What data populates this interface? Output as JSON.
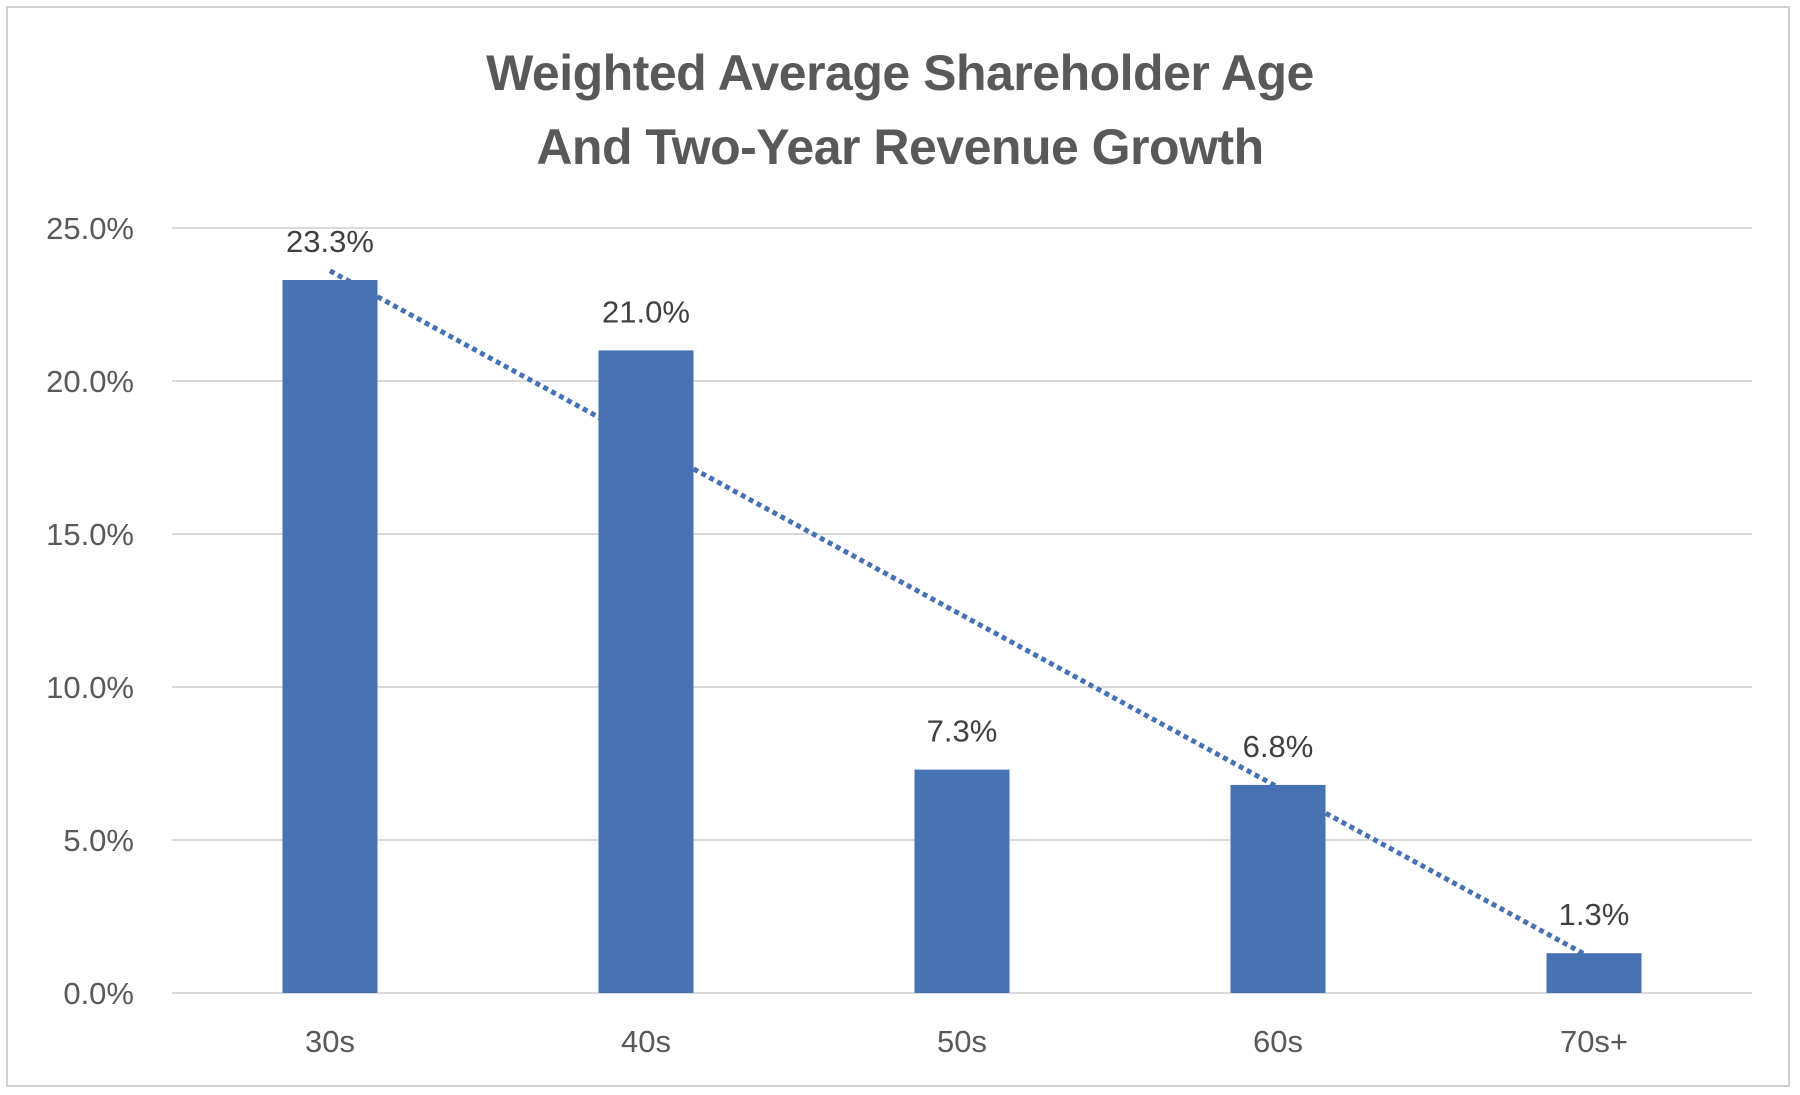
{
  "chart_data": {
    "type": "bar",
    "title_lines": [
      "Weighted Average Shareholder Age",
      "And Two-Year Revenue Growth"
    ],
    "categories": [
      "30s",
      "40s",
      "50s",
      "60s",
      "70s+"
    ],
    "values": [
      23.3,
      21.0,
      7.3,
      6.8,
      1.3
    ],
    "data_labels": [
      "23.3%",
      "21.0%",
      "7.3%",
      "6.8%",
      "1.3%"
    ],
    "ylim": [
      0,
      25
    ],
    "yticks": [
      0,
      5,
      10,
      15,
      20,
      25
    ],
    "ytick_labels": [
      "0.0%",
      "5.0%",
      "10.0%",
      "15.0%",
      "20.0%",
      "25.0%"
    ],
    "xlabel": "",
    "ylabel": "",
    "grid": true,
    "legend": "none",
    "bar_color": "#4672B4",
    "trendline": {
      "type": "linear",
      "style": "dotted",
      "color": "#4672B4",
      "start_value": 23.6,
      "end_value": 1.1
    }
  }
}
